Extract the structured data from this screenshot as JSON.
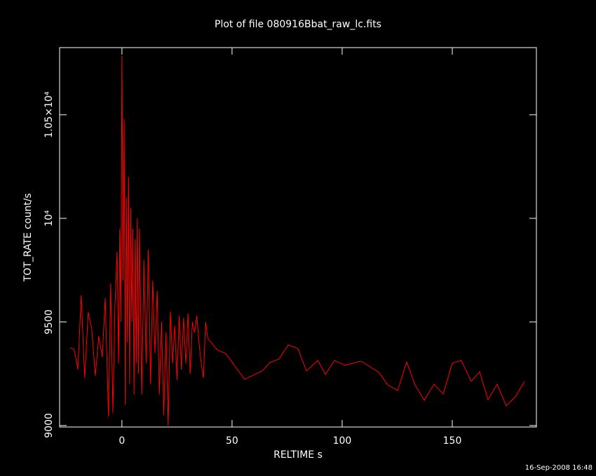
{
  "chart_data": {
    "type": "line",
    "title": "Plot of file 080916Bbat_raw_lc.fits",
    "x_label": "RELTIME  s",
    "y_label": "TOT_RATE  count/s",
    "footer": "16-Sep-2008 16:48",
    "x": [
      -23.6,
      -21.7,
      -20,
      -18.5,
      -16.9,
      -15.3,
      -13.7,
      -12.1,
      -10.5,
      -8.9,
      -7.6,
      -6.1,
      -5.1,
      -4.1,
      -3.2,
      -2.2,
      -2,
      -1.5,
      -1,
      -0.5,
      0,
      0.5,
      1,
      1.5,
      2,
      2.5,
      3,
      3.5,
      4,
      4.5,
      5,
      5.5,
      6,
      6.5,
      7,
      7.5,
      8,
      9,
      10,
      11,
      12,
      13,
      14,
      15,
      16,
      17,
      18,
      19,
      20,
      21,
      22,
      23,
      24,
      25,
      26,
      27,
      28,
      29,
      30,
      31,
      32,
      33,
      34,
      35,
      36,
      37,
      38,
      39,
      43.3,
      47.1,
      55.7,
      63.7,
      67.2,
      71.3,
      75.5,
      79.9,
      83.8,
      88.9,
      92.4,
      96.5,
      101.3,
      108.6,
      116.6,
      120.7,
      125.2,
      129.3,
      133.1,
      137.3,
      141.7,
      145.9,
      150,
      154.1,
      158.6,
      162.4,
      166.2,
      170.4,
      174.5,
      178.7,
      182.8
    ],
    "series": [
      {
        "color": "#ff0000",
        "values": [
          9375,
          9368,
          9270,
          9628,
          9230,
          9547,
          9466,
          9240,
          9432,
          9331,
          9615,
          9044,
          9686,
          9061,
          9568,
          9838,
          9700,
          9300,
          9950,
          9500,
          10784,
          9700,
          10480,
          9100,
          10100,
          9400,
          10200,
          9200,
          10050,
          9500,
          9950,
          9150,
          9900,
          9300,
          10000,
          9250,
          9950,
          9150,
          9800,
          9300,
          9850,
          9200,
          9700,
          9350,
          9650,
          9150,
          9500,
          9050,
          9450,
          9000,
          9550,
          9300,
          9480,
          9220,
          9530,
          9270,
          9520,
          9300,
          9540,
          9250,
          9500,
          9450,
          9530,
          9400,
          9300,
          9230,
          9500,
          9420,
          9365,
          9348,
          9223,
          9264,
          9304,
          9321,
          9389,
          9372,
          9264,
          9314,
          9247,
          9314,
          9291,
          9311,
          9257,
          9196,
          9169,
          9307,
          9196,
          9122,
          9199,
          9152,
          9301,
          9314,
          9213,
          9260,
          9125,
          9199,
          9095,
          9139,
          9213
        ]
      }
    ],
    "xlim": [
      -28.3,
      188.2
    ],
    "ylim": [
      8993,
      10824
    ],
    "xticks": [
      0,
      50,
      100,
      150
    ],
    "yticks": [
      9000,
      9500,
      {
        "value": 10000,
        "label": "10⁴"
      },
      {
        "value": 10500,
        "label": "1.05×10⁴"
      }
    ]
  }
}
